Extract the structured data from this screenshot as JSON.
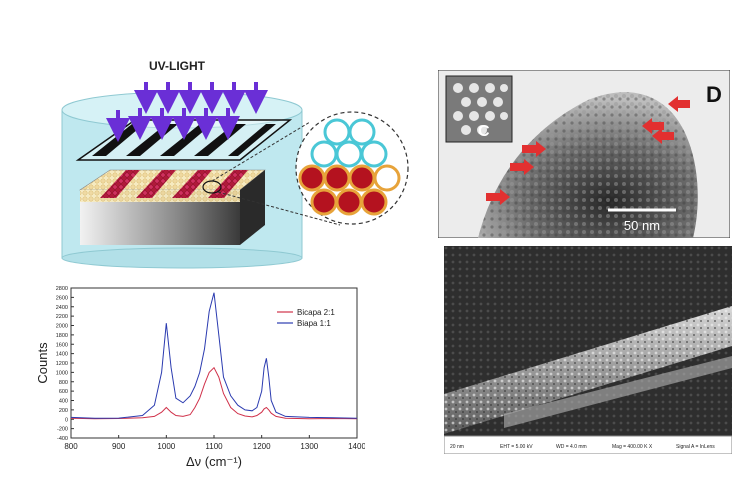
{
  "schematic": {
    "uv_label": "UV-LIGHT"
  },
  "chart_data": {
    "type": "line",
    "x": [
      800,
      850,
      900,
      950,
      975,
      990,
      1000,
      1010,
      1020,
      1035,
      1050,
      1060,
      1070,
      1080,
      1090,
      1100,
      1110,
      1120,
      1135,
      1150,
      1165,
      1180,
      1190,
      1200,
      1205,
      1210,
      1215,
      1220,
      1230,
      1250,
      1300,
      1350,
      1400
    ],
    "series": [
      {
        "name": "Bicapa 2:1",
        "color": "#d0314a",
        "values": [
          20,
          10,
          15,
          30,
          60,
          150,
          250,
          150,
          80,
          60,
          100,
          250,
          450,
          750,
          1000,
          1100,
          900,
          550,
          250,
          120,
          70,
          50,
          80,
          150,
          220,
          250,
          200,
          130,
          60,
          20,
          10,
          15,
          10
        ]
      },
      {
        "name": "Biapa 1:1",
        "color": "#2b3bb0",
        "values": [
          40,
          20,
          25,
          80,
          300,
          1000,
          2050,
          1100,
          450,
          350,
          500,
          700,
          1000,
          1500,
          2300,
          2700,
          1800,
          900,
          500,
          300,
          200,
          180,
          250,
          600,
          1100,
          1300,
          900,
          400,
          150,
          60,
          40,
          30,
          20
        ]
      }
    ],
    "xlabel": "Δν (cm⁻¹)",
    "ylabel": "Counts",
    "xlim": [
      800,
      1400
    ],
    "ylim": [
      -400,
      2800
    ],
    "xticks": [
      "800",
      "900",
      "1000",
      "1100",
      "1200",
      "1300",
      "1400"
    ],
    "yticks": [
      "-400",
      "-200",
      "0",
      "200",
      "400",
      "600",
      "800",
      "1000",
      "1200",
      "1400",
      "1600",
      "1800",
      "2000",
      "2200",
      "2400",
      "2600",
      "2800"
    ],
    "legend_position": "top-right"
  },
  "tem": {
    "panel_letter": "D",
    "inset_letter": "C",
    "scale_label": "50 nm"
  },
  "sem": {
    "footer": {
      "scale": "20 nm",
      "eht": "EHT = 5.00 kV",
      "wd": "WD = 4.0 mm",
      "mag": "Mag = 400.00 K X",
      "signal": "Signal A = InLens"
    }
  },
  "colors": {
    "uv_arrow": "#6a2fd6",
    "cylinder": "#bfe8ef",
    "stripe": "#d0305f",
    "red_arrow": "#e23030"
  }
}
